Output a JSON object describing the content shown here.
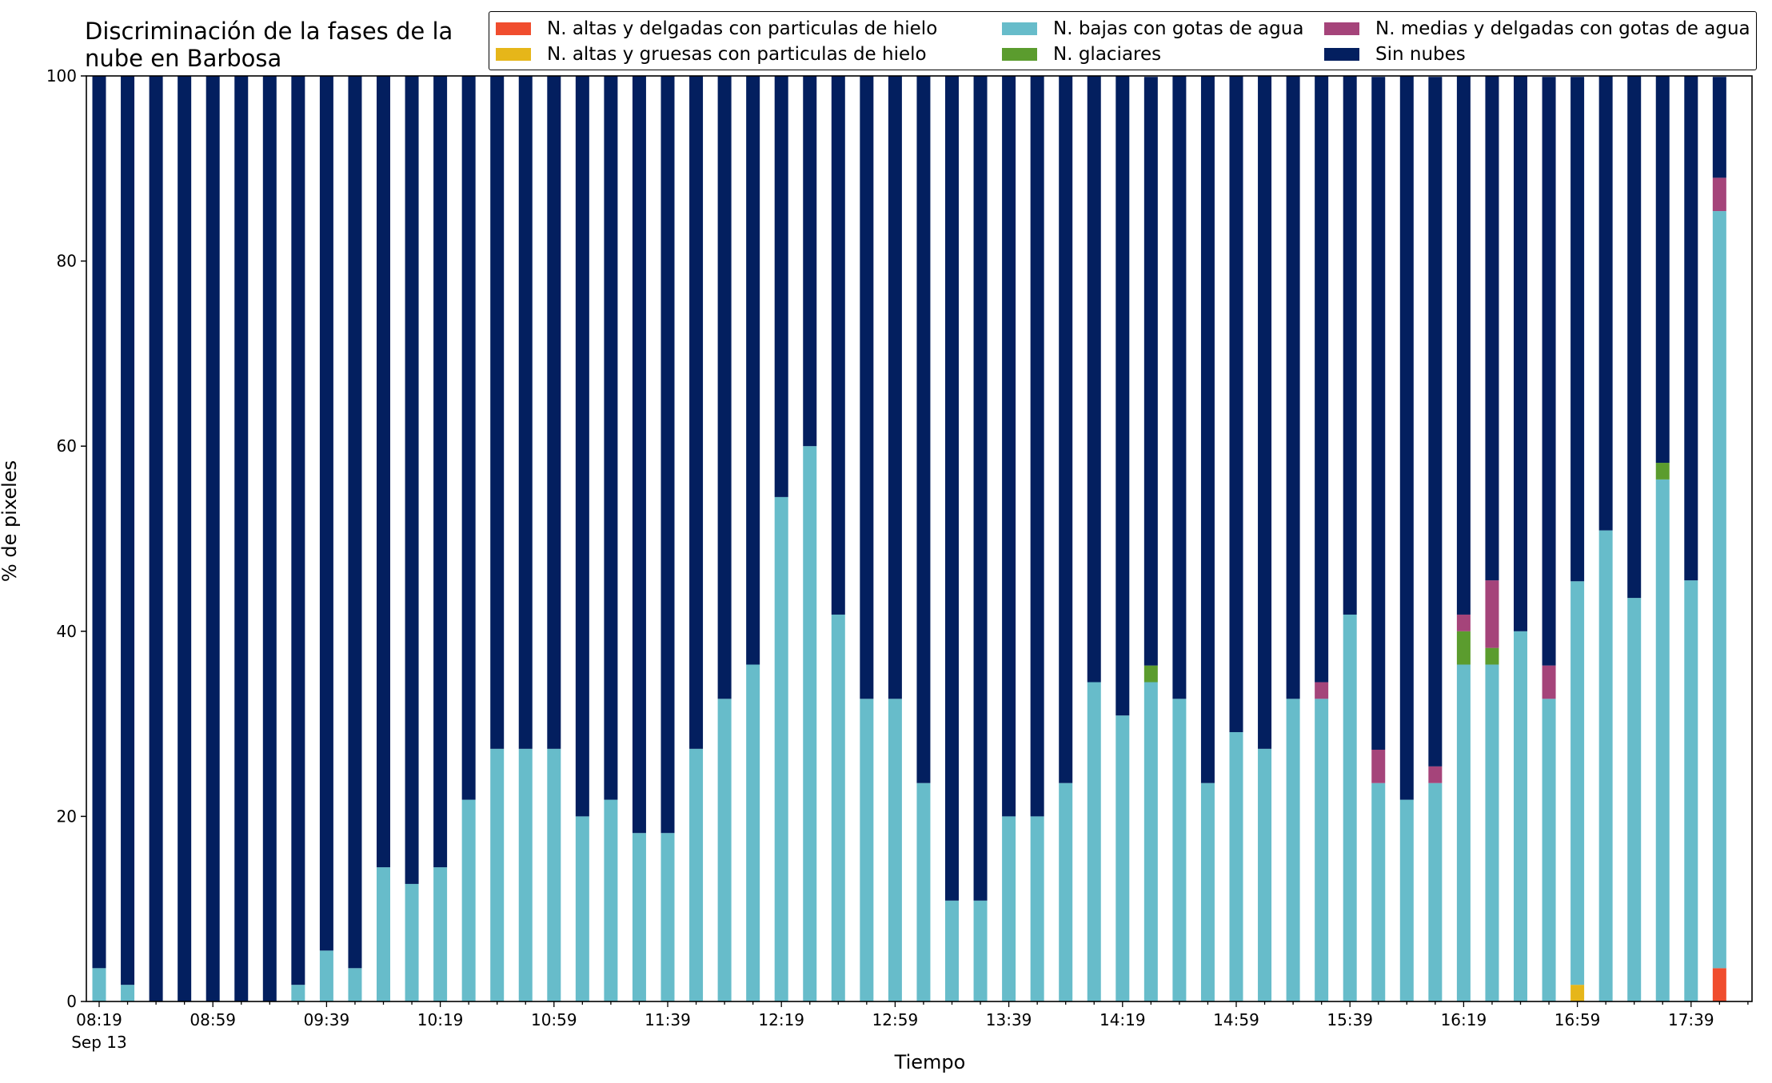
{
  "chart_data": {
    "type": "bar",
    "stacked": true,
    "title": "Discriminación de la fases de la nube en Barbosa",
    "xlabel": "Tiempo",
    "ylabel": "% de pixeles",
    "ylim": [
      0,
      100
    ],
    "yticks": [
      0,
      20,
      40,
      60,
      80,
      100
    ],
    "xtick_labels": [
      "08:19",
      "08:59",
      "09:39",
      "10:19",
      "10:59",
      "11:39",
      "12:19",
      "12:59",
      "13:39",
      "14:19",
      "14:59",
      "15:39",
      "16:19",
      "16:59",
      "17:39"
    ],
    "xtick_sublabel": "Sep 13",
    "grid": false,
    "legend_position": "top-right",
    "categories": [
      "08:19",
      "08:29",
      "08:39",
      "08:49",
      "08:59",
      "09:09",
      "09:19",
      "09:29",
      "09:39",
      "09:49",
      "09:59",
      "10:09",
      "10:19",
      "10:29",
      "10:39",
      "10:49",
      "10:59",
      "11:09",
      "11:19",
      "11:29",
      "11:39",
      "11:49",
      "11:59",
      "12:09",
      "12:19",
      "12:29",
      "12:39",
      "12:49",
      "12:59",
      "13:09",
      "13:19",
      "13:29",
      "13:39",
      "13:49",
      "13:59",
      "14:09",
      "14:19",
      "14:29",
      "14:39",
      "14:49",
      "14:59",
      "15:09",
      "15:19",
      "15:29",
      "15:39",
      "15:49",
      "15:59",
      "16:09",
      "16:19",
      "16:29",
      "16:39",
      "16:49",
      "16:59",
      "17:09",
      "17:19",
      "17:29",
      "17:39",
      "17:49"
    ],
    "series": [
      {
        "name": "N. altas y delgadas con particulas de hielo",
        "color": "#f04d2e",
        "values": [
          0,
          0,
          0,
          0,
          0,
          0,
          0,
          0,
          0,
          0,
          0,
          0,
          0,
          0,
          0,
          0,
          0,
          0,
          0,
          0,
          0,
          0,
          0,
          0,
          0,
          0,
          0,
          0,
          0,
          0,
          0,
          0,
          0,
          0,
          0,
          0,
          0,
          0,
          0,
          0,
          0,
          0,
          0,
          0,
          0,
          0,
          0,
          0,
          0,
          0,
          0,
          0,
          0,
          0,
          0,
          0,
          0,
          3.6
        ]
      },
      {
        "name": "N. altas y gruesas con particulas de hielo",
        "color": "#e6b619",
        "values": [
          0,
          0,
          0,
          0,
          0,
          0,
          0,
          0,
          0,
          0,
          0,
          0,
          0,
          0,
          0,
          0,
          0,
          0,
          0,
          0,
          0,
          0,
          0,
          0,
          0,
          0,
          0,
          0,
          0,
          0,
          0,
          0,
          0,
          0,
          0,
          0,
          0,
          0,
          0,
          0,
          0,
          0,
          0,
          0,
          0,
          0,
          0,
          0,
          0,
          0,
          0,
          0,
          1.8,
          0,
          0,
          0,
          0,
          0
        ]
      },
      {
        "name": "N. bajas con gotas de agua",
        "color": "#67bcca",
        "values": [
          3.6,
          1.8,
          0,
          0,
          0,
          0,
          0,
          1.8,
          5.5,
          3.6,
          14.5,
          12.7,
          14.5,
          21.8,
          27.3,
          27.3,
          27.3,
          20.0,
          21.8,
          18.2,
          18.2,
          27.3,
          32.7,
          36.4,
          54.5,
          60.0,
          41.8,
          32.7,
          32.7,
          23.6,
          10.9,
          10.9,
          20.0,
          20.0,
          23.6,
          34.5,
          30.9,
          34.5,
          32.7,
          23.6,
          29.1,
          27.3,
          32.7,
          32.7,
          41.8,
          23.6,
          21.8,
          23.6,
          36.4,
          36.4,
          40.0,
          32.7,
          43.6,
          50.9,
          43.6,
          56.4,
          45.5,
          81.8
        ]
      },
      {
        "name": "N. glaciares",
        "color": "#5b9c2e",
        "values": [
          0,
          0,
          0,
          0,
          0,
          0,
          0,
          0,
          0,
          0,
          0,
          0,
          0,
          0,
          0,
          0,
          0,
          0,
          0,
          0,
          0,
          0,
          0,
          0,
          0,
          0,
          0,
          0,
          0,
          0,
          0,
          0,
          0,
          0,
          0,
          0,
          0,
          1.8,
          0,
          0,
          0,
          0,
          0,
          0,
          0,
          0,
          0,
          0,
          3.6,
          1.8,
          0,
          0,
          0,
          0,
          0,
          1.8,
          0,
          0
        ]
      },
      {
        "name": "N. medias y delgadas con gotas de agua",
        "color": "#a5447a",
        "values": [
          0,
          0,
          0,
          0,
          0,
          0,
          0,
          0,
          0,
          0,
          0,
          0,
          0,
          0,
          0,
          0,
          0,
          0,
          0,
          0,
          0,
          0,
          0,
          0,
          0,
          0,
          0,
          0,
          0,
          0,
          0,
          0,
          0,
          0,
          0,
          0,
          0,
          0,
          0,
          0,
          0,
          0,
          0,
          1.8,
          0,
          3.6,
          0,
          1.8,
          1.8,
          7.3,
          0,
          3.6,
          0,
          0,
          0,
          0,
          0,
          3.6
        ]
      },
      {
        "name": "Sin nubes",
        "color": "#031f5f",
        "values": [
          96.4,
          98.2,
          100,
          100,
          100,
          100,
          100,
          98.2,
          94.5,
          96.4,
          85.5,
          87.3,
          85.5,
          78.2,
          72.7,
          72.7,
          72.7,
          80.0,
          78.2,
          81.8,
          81.8,
          72.7,
          67.3,
          63.6,
          45.5,
          40.0,
          58.2,
          67.3,
          67.3,
          76.4,
          89.1,
          89.1,
          80.0,
          80.0,
          76.4,
          65.5,
          69.1,
          63.6,
          67.3,
          76.4,
          70.9,
          72.7,
          67.3,
          65.5,
          58.2,
          72.7,
          78.2,
          74.5,
          58.2,
          54.5,
          60.0,
          63.6,
          54.5,
          49.1,
          56.4,
          41.8,
          54.5,
          10.9
        ]
      }
    ]
  }
}
